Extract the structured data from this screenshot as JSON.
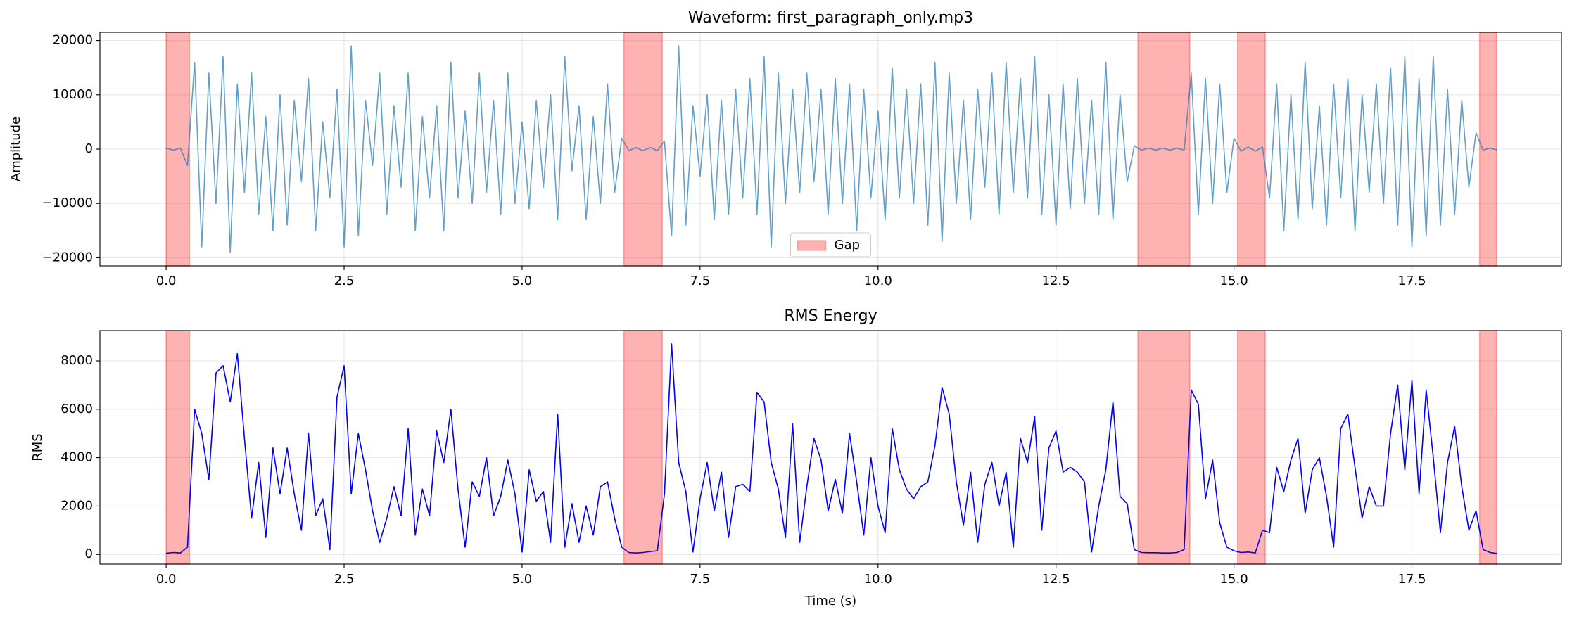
{
  "chart_data": [
    {
      "type": "line",
      "title": "Waveform: first_paragraph_only.mp3",
      "ylabel": "Amplitude",
      "color": "#1f77b4",
      "x": [
        0,
        0.1,
        0.2,
        0.3,
        0.4,
        0.5,
        0.6,
        0.7,
        0.8,
        0.9,
        1,
        1.1,
        1.2,
        1.3,
        1.4,
        1.5,
        1.6,
        1.7,
        1.8,
        1.9,
        2,
        2.1,
        2.2,
        2.3,
        2.4,
        2.5,
        2.6,
        2.7,
        2.8,
        2.9,
        3,
        3.1,
        3.2,
        3.3,
        3.4,
        3.5,
        3.6,
        3.7,
        3.8,
        3.9,
        4,
        4.1,
        4.2,
        4.3,
        4.4,
        4.5,
        4.6,
        4.7,
        4.8,
        4.9,
        5,
        5.1,
        5.2,
        5.3,
        5.4,
        5.5,
        5.6,
        5.7,
        5.8,
        5.9,
        6,
        6.1,
        6.2,
        6.3,
        6.4,
        6.5,
        6.6,
        6.7,
        6.8,
        6.9,
        7,
        7.1,
        7.2,
        7.3,
        7.4,
        7.5,
        7.6,
        7.7,
        7.8,
        7.9,
        8,
        8.1,
        8.2,
        8.3,
        8.4,
        8.5,
        8.6,
        8.7,
        8.8,
        8.9,
        9,
        9.1,
        9.2,
        9.3,
        9.4,
        9.5,
        9.6,
        9.7,
        9.8,
        9.9,
        10,
        10.1,
        10.2,
        10.3,
        10.4,
        10.5,
        10.6,
        10.7,
        10.8,
        10.9,
        11,
        11.1,
        11.2,
        11.3,
        11.4,
        11.5,
        11.6,
        11.7,
        11.8,
        11.9,
        12,
        12.1,
        12.2,
        12.3,
        12.4,
        12.5,
        12.6,
        12.7,
        12.8,
        12.9,
        13,
        13.1,
        13.2,
        13.3,
        13.4,
        13.5,
        13.6,
        13.7,
        13.8,
        13.9,
        14,
        14.1,
        14.2,
        14.3,
        14.4,
        14.5,
        14.6,
        14.7,
        14.8,
        14.9,
        15,
        15.1,
        15.2,
        15.3,
        15.4,
        15.5,
        15.6,
        15.7,
        15.8,
        15.9,
        16,
        16.1,
        16.2,
        16.3,
        16.4,
        16.5,
        16.6,
        16.7,
        16.8,
        16.9,
        17,
        17.1,
        17.2,
        17.3,
        17.4,
        17.5,
        17.6,
        17.7,
        17.8,
        17.9,
        18,
        18.1,
        18.2,
        18.3,
        18.4,
        18.5,
        18.6,
        18.7
      ],
      "values": [
        200,
        -200,
        200,
        -3000,
        16000,
        -18000,
        14000,
        -10000,
        17000,
        -19000,
        12000,
        -8000,
        14000,
        -12000,
        6000,
        -15000,
        10000,
        -14000,
        9000,
        -6000,
        13000,
        -15000,
        5000,
        -9000,
        11000,
        -18000,
        19000,
        -16000,
        9000,
        -3000,
        14000,
        -12000,
        8000,
        -7000,
        14000,
        -15000,
        6000,
        -9000,
        8000,
        -15000,
        16000,
        -9000,
        7000,
        -10000,
        14000,
        -8000,
        9000,
        -12000,
        14000,
        -10000,
        5000,
        -11000,
        9000,
        -7000,
        10000,
        -13000,
        17000,
        -4000,
        8000,
        -13000,
        6000,
        -10000,
        12000,
        -8000,
        2000,
        -300,
        300,
        -300,
        300,
        -300,
        1500,
        -16000,
        19000,
        -14000,
        8000,
        -5000,
        10000,
        -13000,
        9000,
        -12000,
        11000,
        -9000,
        13000,
        -12000,
        17000,
        -18000,
        14000,
        -10000,
        11000,
        -8000,
        14000,
        -6000,
        11000,
        -12000,
        13000,
        -10000,
        12000,
        -15000,
        11000,
        -9000,
        7000,
        -13000,
        15000,
        -9000,
        11000,
        -10000,
        12000,
        -14000,
        16000,
        -17000,
        14000,
        -10000,
        9000,
        -13000,
        11000,
        -7000,
        14000,
        -12000,
        16000,
        -8000,
        13000,
        -9000,
        17000,
        -12000,
        10000,
        -14000,
        12000,
        -11000,
        13000,
        -10000,
        9000,
        -12000,
        16000,
        -13000,
        10000,
        -6000,
        600,
        -200,
        200,
        -200,
        200,
        -200,
        200,
        -200,
        14000,
        -12000,
        13000,
        -10000,
        12000,
        -8000,
        2000,
        -400,
        400,
        -400,
        400,
        -9000,
        12000,
        -15000,
        10000,
        -13000,
        16000,
        -11000,
        8000,
        -14000,
        12000,
        -9000,
        13000,
        -15000,
        10000,
        -8000,
        12000,
        -10000,
        15000,
        -14000,
        17000,
        -18000,
        13000,
        -16000,
        17000,
        -14000,
        11000,
        -12000,
        9000,
        -7000,
        3000,
        -200,
        200,
        -200
      ],
      "spans": [
        [
          0,
          0.33
        ],
        [
          6.43,
          6.97
        ],
        [
          13.65,
          14.38
        ],
        [
          15.05,
          15.44
        ],
        [
          18.45,
          18.69
        ]
      ],
      "span_label": "Gap",
      "span_color": "#ff0000",
      "legend": "lower center",
      "xlim": [
        -0.93,
        19.6
      ],
      "xticks": [
        {
          "value": 0,
          "label": "0.0"
        },
        2.5,
        {
          "value": 5,
          "label": "5.0"
        },
        7.5,
        {
          "value": 10,
          "label": "10.0"
        },
        12.5,
        {
          "value": 15,
          "label": "15.0"
        },
        17.5
      ],
      "ylim": [
        -21500,
        21500
      ],
      "yticks": [
        {
          "value": -20000,
          "label": "−20000"
        },
        {
          "value": -10000,
          "label": "−10000"
        },
        0,
        10000,
        20000
      ],
      "grid": true
    },
    {
      "type": "line",
      "title": "RMS Energy",
      "ylabel": "RMS",
      "xlabel": "Time (s)",
      "color": "#0000ff",
      "x": [
        0,
        0.1,
        0.2,
        0.3,
        0.4,
        0.5,
        0.6,
        0.7,
        0.8,
        0.9,
        1,
        1.1,
        1.2,
        1.3,
        1.4,
        1.5,
        1.6,
        1.7,
        1.8,
        1.9,
        2,
        2.1,
        2.2,
        2.3,
        2.4,
        2.5,
        2.6,
        2.7,
        2.8,
        2.9,
        3,
        3.1,
        3.2,
        3.3,
        3.4,
        3.5,
        3.6,
        3.7,
        3.8,
        3.9,
        4,
        4.1,
        4.2,
        4.3,
        4.4,
        4.5,
        4.6,
        4.7,
        4.8,
        4.9,
        5,
        5.1,
        5.2,
        5.3,
        5.4,
        5.5,
        5.6,
        5.7,
        5.8,
        5.9,
        6,
        6.1,
        6.2,
        6.3,
        6.4,
        6.5,
        6.6,
        6.7,
        6.8,
        6.9,
        7,
        7.1,
        7.2,
        7.3,
        7.4,
        7.5,
        7.6,
        7.7,
        7.8,
        7.9,
        8,
        8.1,
        8.2,
        8.3,
        8.4,
        8.5,
        8.6,
        8.7,
        8.8,
        8.9,
        9,
        9.1,
        9.2,
        9.3,
        9.4,
        9.5,
        9.6,
        9.7,
        9.8,
        9.9,
        10,
        10.1,
        10.2,
        10.3,
        10.4,
        10.5,
        10.6,
        10.7,
        10.8,
        10.9,
        11,
        11.1,
        11.2,
        11.3,
        11.4,
        11.5,
        11.6,
        11.7,
        11.8,
        11.9,
        12,
        12.1,
        12.2,
        12.3,
        12.4,
        12.5,
        12.6,
        12.7,
        12.8,
        12.9,
        13,
        13.1,
        13.2,
        13.3,
        13.4,
        13.5,
        13.6,
        13.7,
        13.8,
        13.9,
        14,
        14.1,
        14.2,
        14.3,
        14.4,
        14.5,
        14.6,
        14.7,
        14.8,
        14.9,
        15,
        15.1,
        15.2,
        15.3,
        15.4,
        15.5,
        15.6,
        15.7,
        15.8,
        15.9,
        16,
        16.1,
        16.2,
        16.3,
        16.4,
        16.5,
        16.6,
        16.7,
        16.8,
        16.9,
        17,
        17.1,
        17.2,
        17.3,
        17.4,
        17.5,
        17.6,
        17.7,
        17.8,
        17.9,
        18,
        18.1,
        18.2,
        18.3,
        18.4,
        18.5,
        18.6,
        18.7
      ],
      "values": [
        50,
        80,
        60,
        300,
        6000,
        5000,
        3100,
        7500,
        7800,
        6300,
        8300,
        4800,
        1500,
        3800,
        700,
        4400,
        2500,
        4400,
        2500,
        1000,
        5000,
        1600,
        2300,
        200,
        6500,
        7800,
        2500,
        5000,
        3500,
        1800,
        500,
        1500,
        2800,
        1600,
        5200,
        800,
        2700,
        1600,
        5100,
        3800,
        6000,
        2700,
        300,
        3000,
        2400,
        4000,
        1600,
        2400,
        3900,
        2500,
        100,
        3500,
        2200,
        2600,
        500,
        5800,
        300,
        2100,
        500,
        2000,
        800,
        2800,
        3000,
        1500,
        300,
        80,
        60,
        80,
        120,
        150,
        2500,
        8700,
        3800,
        2600,
        100,
        2300,
        3800,
        1800,
        3400,
        700,
        2800,
        2900,
        2600,
        6700,
        6300,
        3800,
        2700,
        700,
        5400,
        500,
        2800,
        4800,
        3900,
        1800,
        3100,
        1700,
        5000,
        3000,
        800,
        4000,
        2000,
        900,
        5200,
        3500,
        2700,
        2300,
        2800,
        3000,
        4500,
        6900,
        5800,
        3000,
        1200,
        3400,
        500,
        2900,
        3800,
        2000,
        3400,
        300,
        4800,
        3800,
        5700,
        1000,
        4400,
        5100,
        3400,
        3600,
        3400,
        3000,
        100,
        2000,
        3500,
        6300,
        2400,
        2100,
        200,
        80,
        70,
        70,
        60,
        60,
        80,
        200,
        6800,
        6200,
        2300,
        3900,
        1300,
        300,
        150,
        80,
        100,
        60,
        1000,
        900,
        3600,
        2600,
        3900,
        4800,
        1700,
        3500,
        4000,
        2400,
        300,
        5200,
        5800,
        3600,
        1500,
        2800,
        2000,
        2000,
        5000,
        7000,
        3500,
        7200,
        2500,
        6800,
        4000,
        900,
        3800,
        5300,
        2800,
        1000,
        1800,
        200,
        80,
        40
      ],
      "spans": [
        [
          0,
          0.33
        ],
        [
          6.43,
          6.97
        ],
        [
          13.65,
          14.38
        ],
        [
          15.05,
          15.44
        ],
        [
          18.45,
          18.69
        ]
      ],
      "span_color": "#ff0000",
      "xlim": [
        -0.93,
        19.6
      ],
      "xticks": [
        {
          "value": 0,
          "label": "0.0"
        },
        2.5,
        {
          "value": 5,
          "label": "5.0"
        },
        7.5,
        {
          "value": 10,
          "label": "10.0"
        },
        12.5,
        {
          "value": 15,
          "label": "15.0"
        },
        17.5
      ],
      "ylim": [
        -400,
        9250
      ],
      "yticks": [
        0,
        2000,
        4000,
        6000,
        8000
      ],
      "grid": true
    }
  ]
}
